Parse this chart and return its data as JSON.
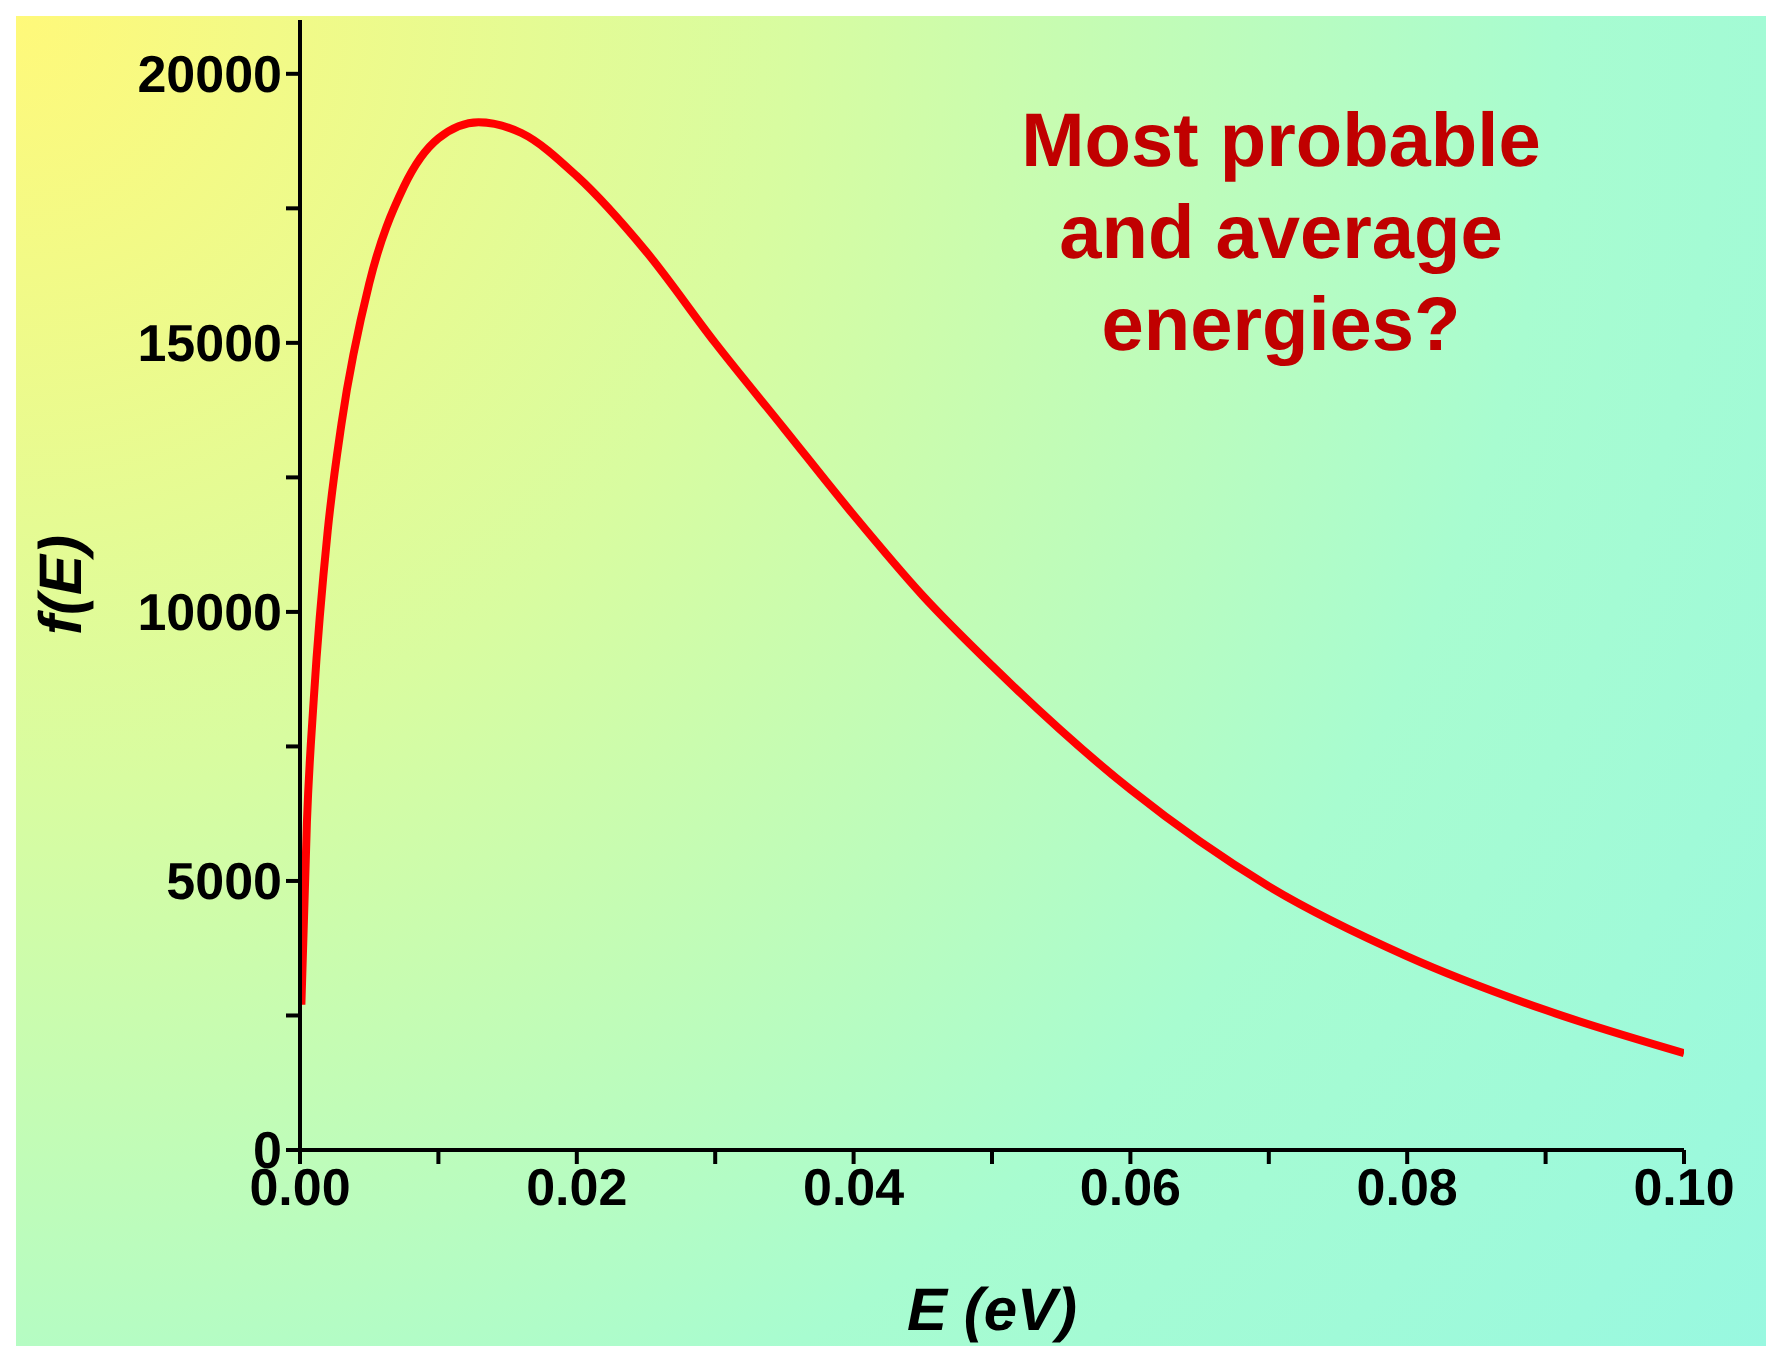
{
  "chart_data": {
    "type": "line",
    "xlabel": "E (eV)",
    "ylabel": "f(E)",
    "annotations": [
      "Most probable and average energies?"
    ],
    "x": [
      0.0001,
      0.0005,
      0.001,
      0.002,
      0.003,
      0.005,
      0.0075,
      0.01,
      0.0129,
      0.016,
      0.02,
      0.025,
      0.03,
      0.035,
      0.04,
      0.045,
      0.05,
      0.06,
      0.07,
      0.08,
      0.09,
      0.1
    ],
    "series": [
      {
        "color": "#ff0000",
        "values": [
          2700,
          6100,
          8400,
          11500,
          13500,
          16100,
          17900,
          18800,
          19100,
          18900,
          18100,
          16700,
          15000,
          13400,
          11800,
          10300,
          9000,
          6700,
          4900,
          3600,
          2600,
          1800
        ]
      }
    ],
    "xlim": [
      0,
      0.1
    ],
    "xticks": [
      {
        "value": 0,
        "label": "0.00"
      },
      {
        "value": 0.01,
        "label": null
      },
      "0.02",
      {
        "value": 0.03,
        "label": null
      },
      0.04,
      {
        "value": 0.05,
        "label": null
      },
      0.06,
      {
        "value": 0.07,
        "label": null
      },
      0.08,
      {
        "value": 0.09,
        "label": null
      },
      {
        "value": 0.1,
        "label": "0.10"
      }
    ],
    "ylim": [
      0,
      21000
    ],
    "yticks": [
      0,
      {
        "value": 2500,
        "label": null
      },
      5000,
      {
        "value": 7500,
        "label": null
      },
      10000,
      {
        "value": 12500,
        "label": null
      },
      15000,
      {
        "value": 17500,
        "label": null
      },
      20000
    ],
    "grid": false,
    "legend": false,
    "marker": "none",
    "line_style": "solid"
  }
}
